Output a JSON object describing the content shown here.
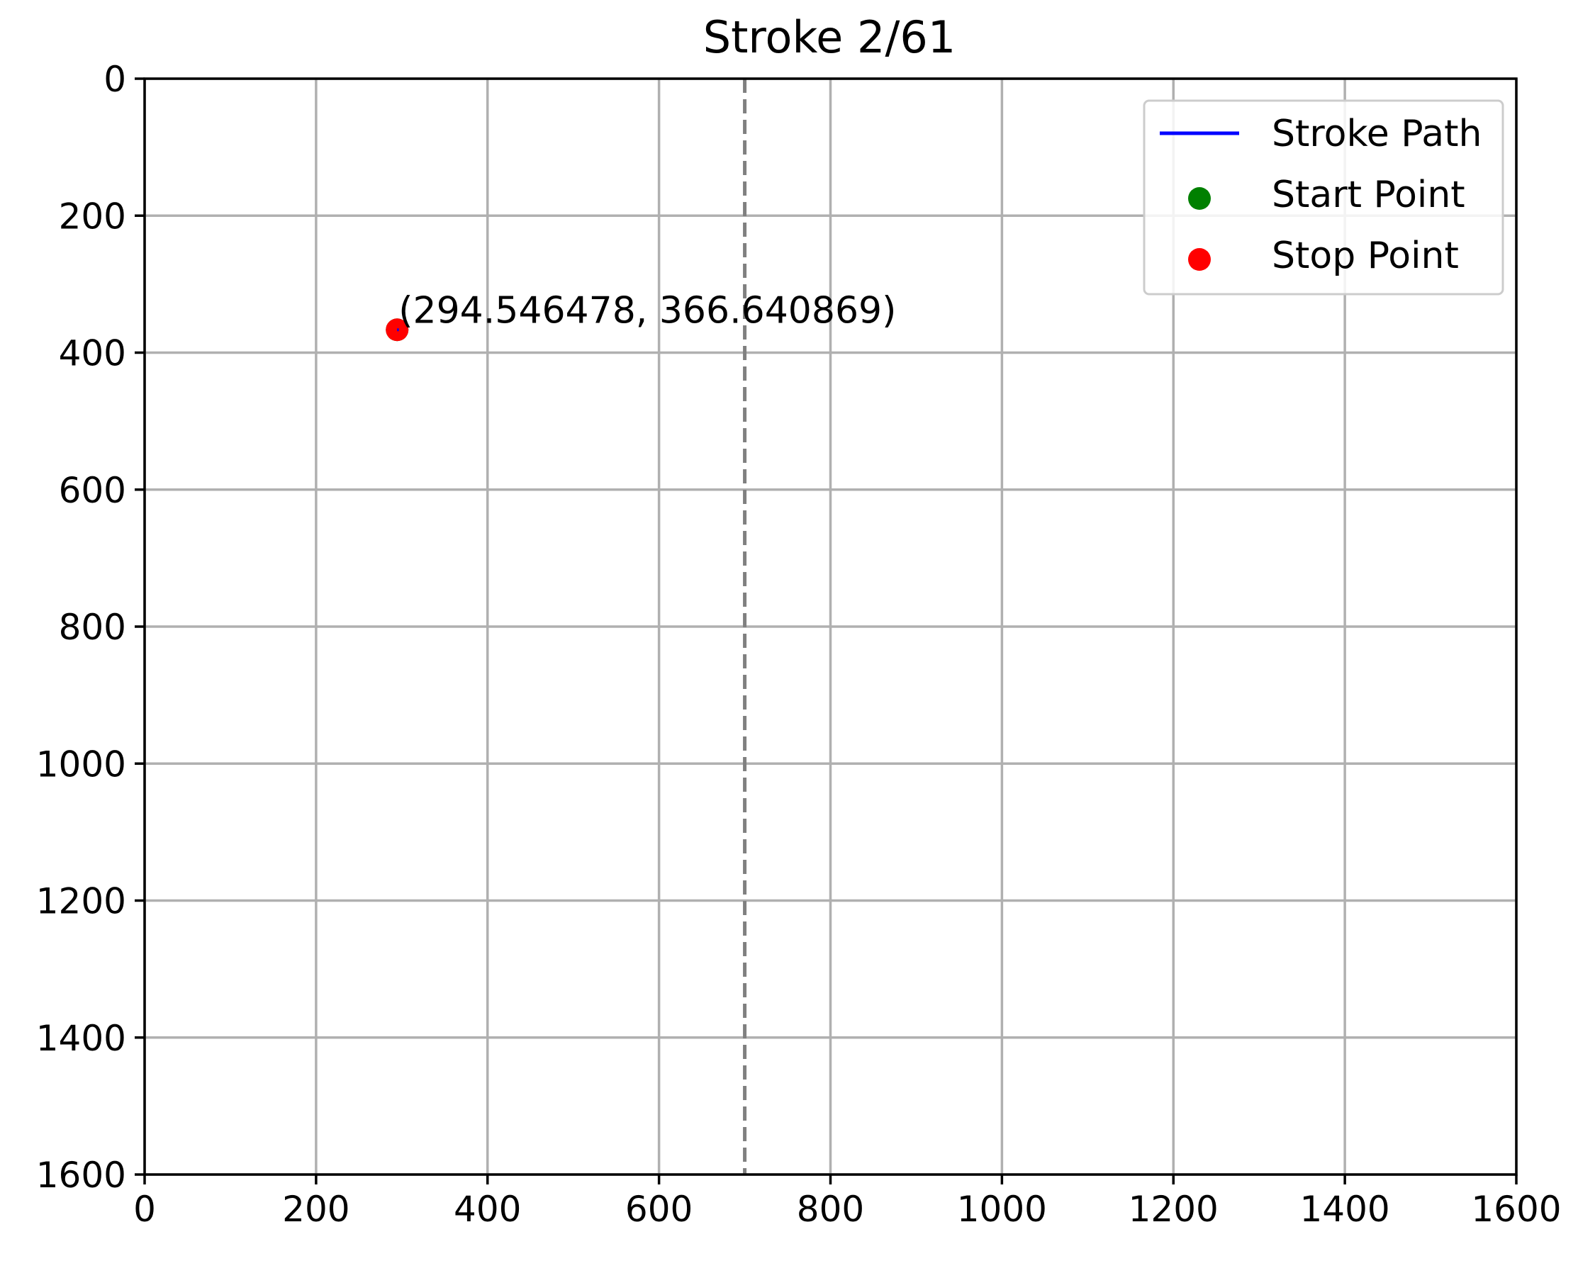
{
  "chart_data": {
    "type": "scatter",
    "title": "Stroke 2/61",
    "xlabel": "",
    "ylabel": "",
    "xlim": [
      0,
      1600
    ],
    "ylim": [
      1600,
      0
    ],
    "y_inverted": true,
    "x_ticks": [
      0,
      200,
      400,
      600,
      800,
      1000,
      1200,
      1400,
      1600
    ],
    "y_ticks": [
      0,
      200,
      400,
      600,
      800,
      1000,
      1200,
      1400,
      1600
    ],
    "grid": true,
    "legend_position": "top-right",
    "reference_line": {
      "axis": "x",
      "value": 700,
      "style": "dashed",
      "color": "#808080"
    },
    "series": [
      {
        "name": "Stroke Path",
        "kind": "line",
        "color": "#0000ff",
        "points": [
          [
            294.546478,
            366.640869
          ],
          [
            296.5,
            366.64
          ]
        ]
      },
      {
        "name": "Start Point",
        "kind": "point",
        "color": "#008000",
        "points": [
          [
            294.546478,
            366.640869
          ]
        ]
      },
      {
        "name": "Stop Point",
        "kind": "point",
        "color": "#ff0000",
        "points": [
          [
            294.546478,
            366.640869
          ]
        ]
      }
    ],
    "annotations": [
      {
        "text": "(294.546478, 366.640869)",
        "x": 294.546478,
        "y": 366.640869
      }
    ]
  }
}
